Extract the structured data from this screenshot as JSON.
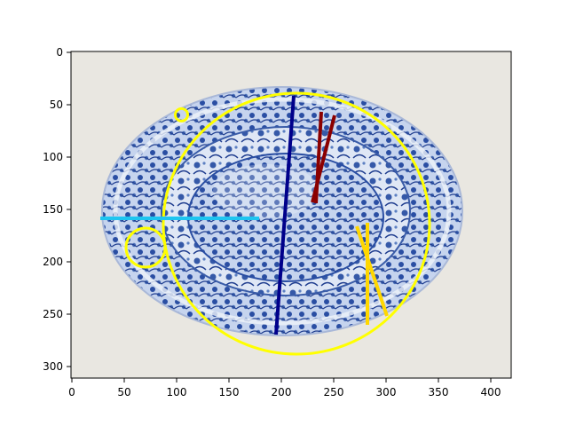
{
  "figure": {
    "x_ticks": [
      "0",
      "50",
      "100",
      "150",
      "200",
      "250",
      "300",
      "350",
      "400"
    ],
    "y_ticks": [
      "0",
      "50",
      "100",
      "150",
      "200",
      "250",
      "300"
    ]
  },
  "image": {
    "subject": "blue-and-white porcelain plate",
    "colors": {
      "background": "#e9e7e1",
      "rim": "#f3f6fa",
      "pattern_dark": "#1f3d8f",
      "pattern_mid": "#4a6fb8"
    }
  },
  "annotations": {
    "colors": {
      "big_circle": "#ffff00",
      "small_circle": "#ffff00",
      "mid_circle": "#ffff00",
      "cyan_line": "#1ec5f0",
      "navy_line": "#00008b",
      "dark_red_lines": "#8b0000",
      "gold_lines": "#ffd700"
    }
  }
}
